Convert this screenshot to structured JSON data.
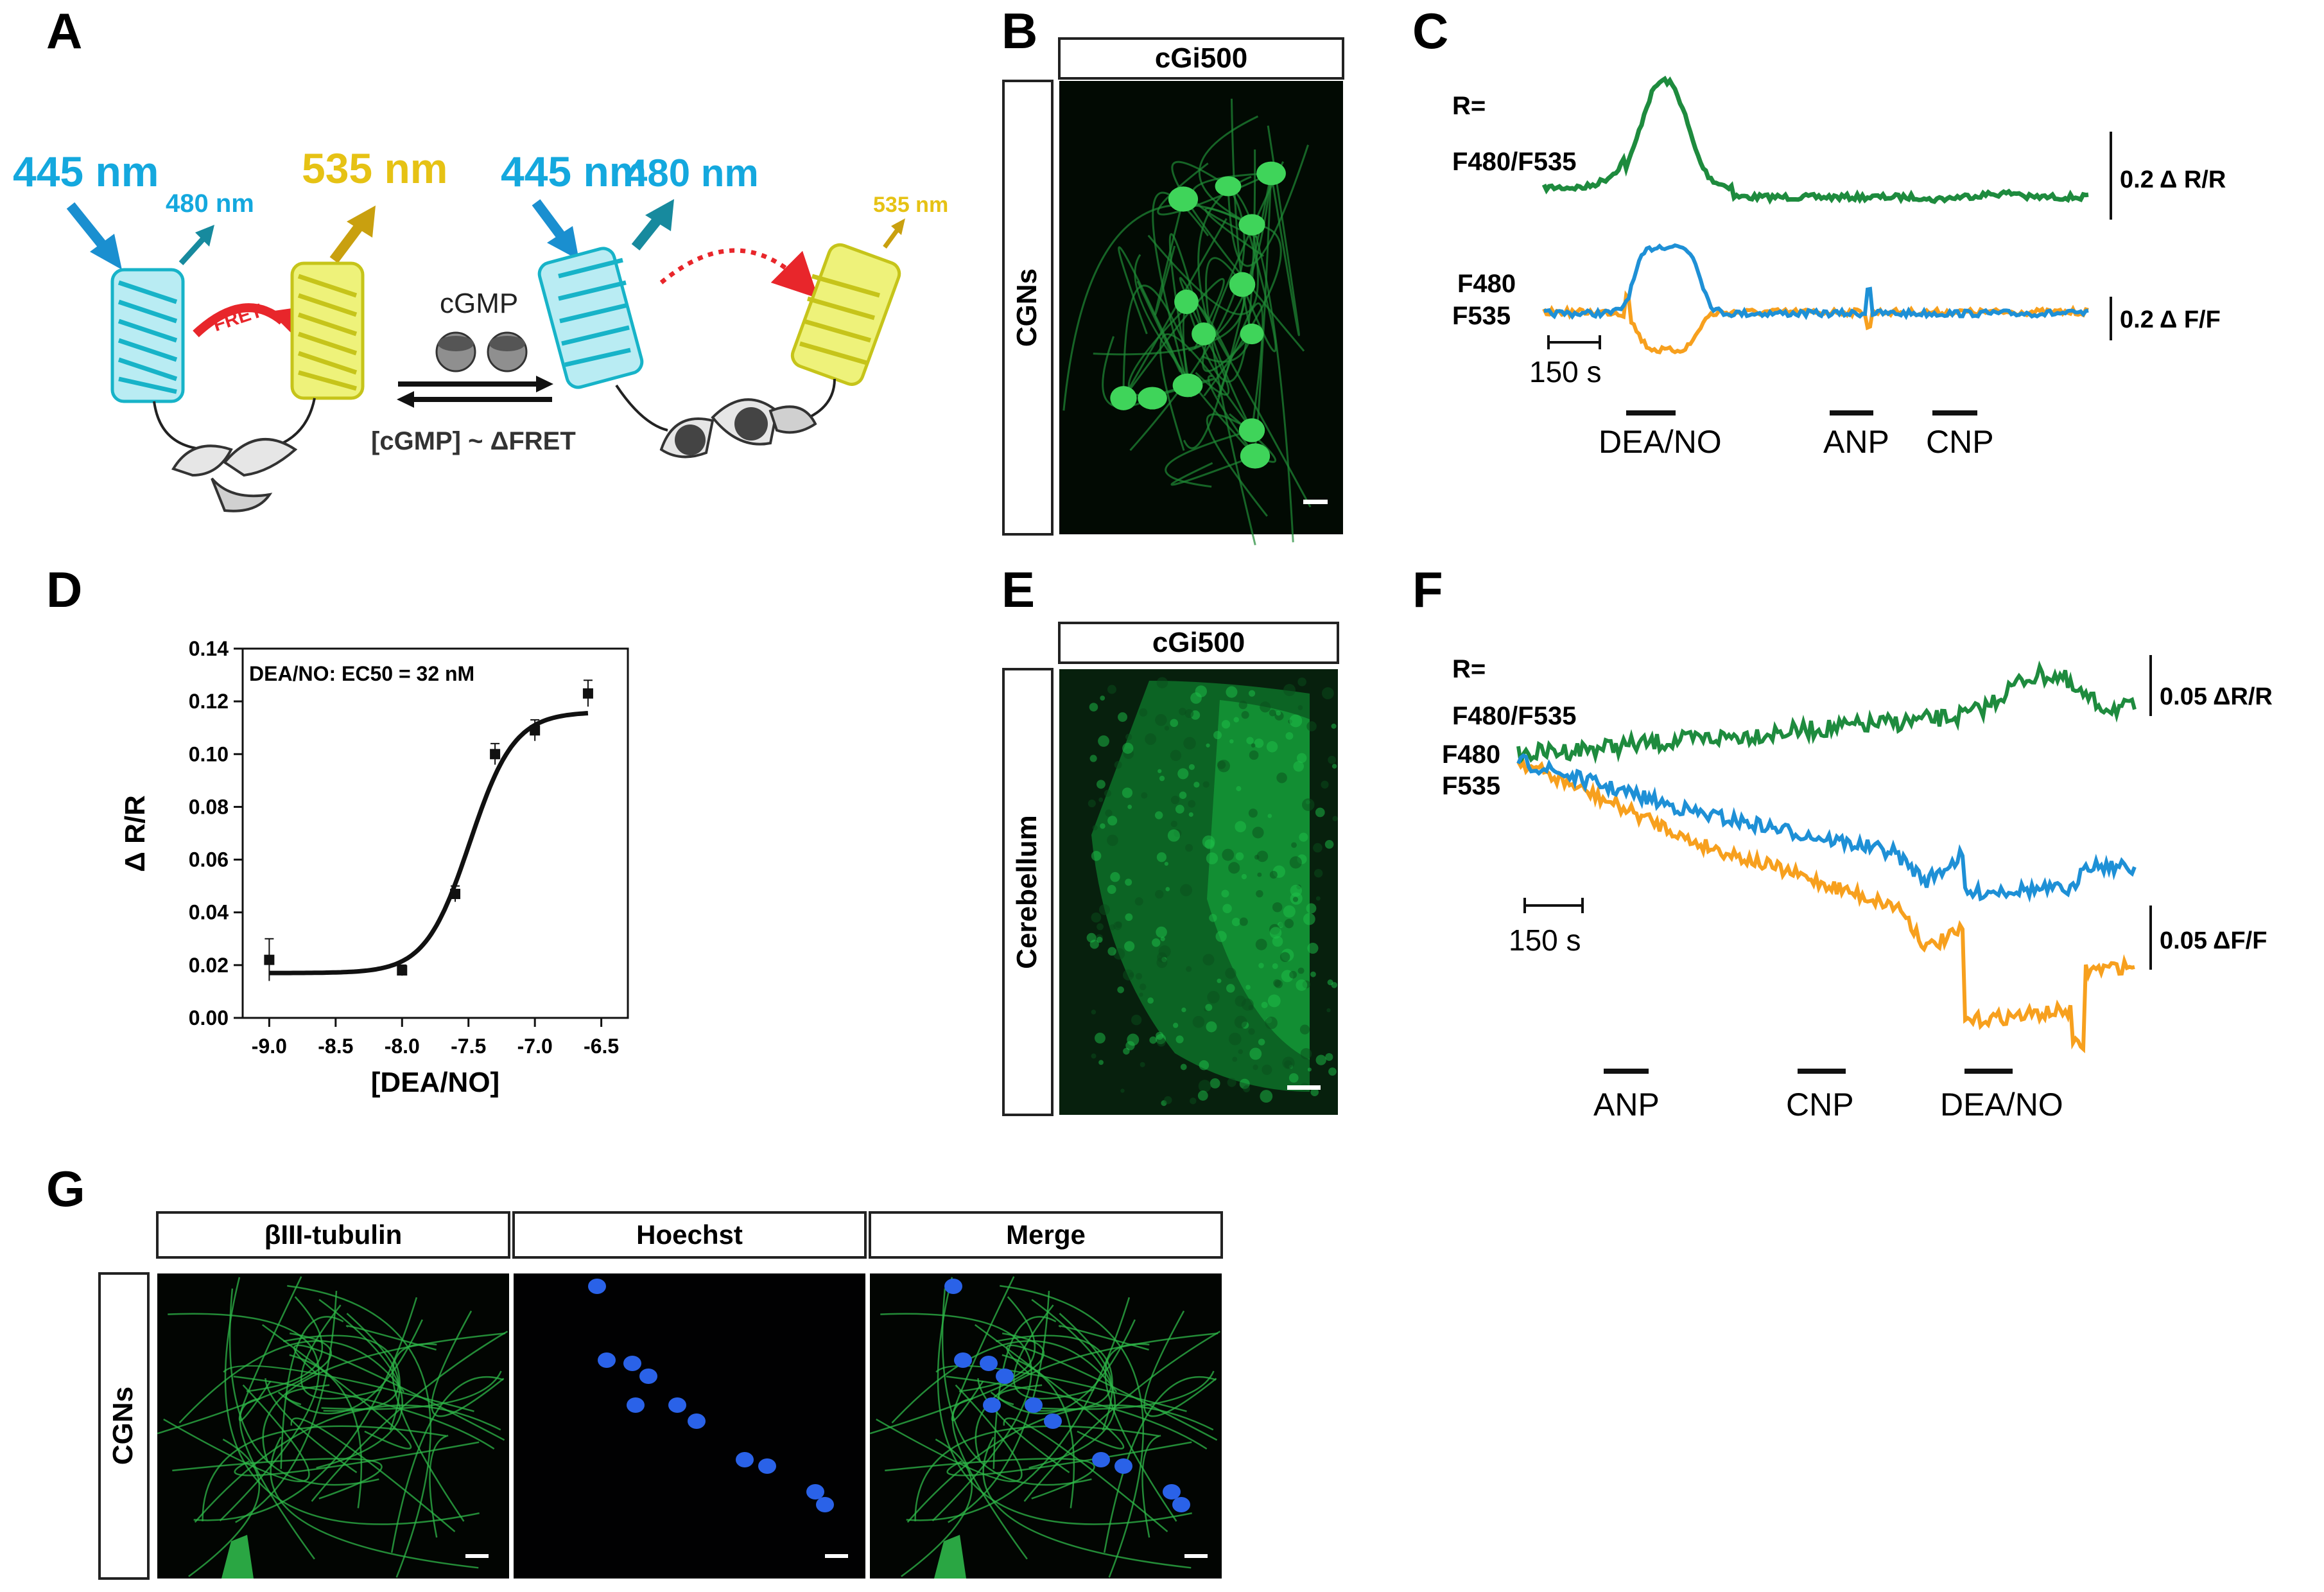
{
  "panels": {
    "A": "A",
    "B": "B",
    "C": "C",
    "D": "D",
    "E": "E",
    "F": "F",
    "G": "G"
  },
  "panelA": {
    "excitation_left": "445 nm",
    "emission_480_small": "480 nm",
    "emission_535_left": "535 nm",
    "fret_label": "FRET",
    "ligand": "cGMP",
    "equation": "[cGMP] ~ ΔFRET",
    "excitation_right": "445 nm",
    "emission_480_right": "480 nm",
    "emission_535_small": "535 nm",
    "colors": {
      "cyan": "#14a8de",
      "yellow": "#e6c214",
      "red": "#e8262b"
    }
  },
  "panelB": {
    "header": "cGi500",
    "side_label": "CGNs"
  },
  "panelE": {
    "header": "cGi500",
    "side_label": "Cerebellum"
  },
  "panelC": {
    "ratio_label_1": "R=",
    "ratio_label_2": "F480/F535",
    "f480": "F480",
    "f535": "F535",
    "scale_ratio": "0.2 Δ R/R",
    "scale_fluor": "0.2 Δ F/F",
    "time_scale": "150 s",
    "stimuli": [
      "DEA/NO",
      "ANP",
      "CNP"
    ]
  },
  "panelF": {
    "ratio_label_1": "R=",
    "ratio_label_2": "F480/F535",
    "f480": "F480",
    "f535": "F535",
    "scale_ratio": "0.05 ΔR/R",
    "scale_fluor": "0.05 ΔF/F",
    "time_scale": "150 s",
    "stimuli": [
      "ANP",
      "CNP",
      "DEA/NO"
    ]
  },
  "panelG": {
    "headers": [
      "βIII-tubulin",
      "Hoechst",
      "Merge"
    ],
    "side_label": "CGNs"
  },
  "trace_colors": {
    "ratio": "#1e8b3e",
    "f480": "#1e90d6",
    "f535": "#f7a01e"
  },
  "chart_data": {
    "type": "scatter",
    "annotation": "DEA/NO: EC50 = 32 nM",
    "xlabel": "[DEA/NO]",
    "ylabel": "Δ R/R",
    "xlim": [
      -9.2,
      -6.3
    ],
    "ylim": [
      0.0,
      0.14
    ],
    "xticks": [
      "-9.0",
      "-8.5",
      "-8.0",
      "-7.5",
      "-7.0",
      "-6.5"
    ],
    "yticks": [
      "0.00",
      "0.02",
      "0.04",
      "0.06",
      "0.08",
      "0.10",
      "0.12",
      "0.14"
    ],
    "x": [
      -9.0,
      -8.0,
      -7.6,
      -7.3,
      -7.0,
      -6.6
    ],
    "y": [
      0.022,
      0.018,
      0.047,
      0.1,
      0.109,
      0.123
    ],
    "err": [
      0.008,
      0.002,
      0.003,
      0.004,
      0.004,
      0.005
    ],
    "fit": {
      "bottom": 0.017,
      "top": 0.116,
      "logEC50": -7.49,
      "hill": 2.6
    }
  }
}
